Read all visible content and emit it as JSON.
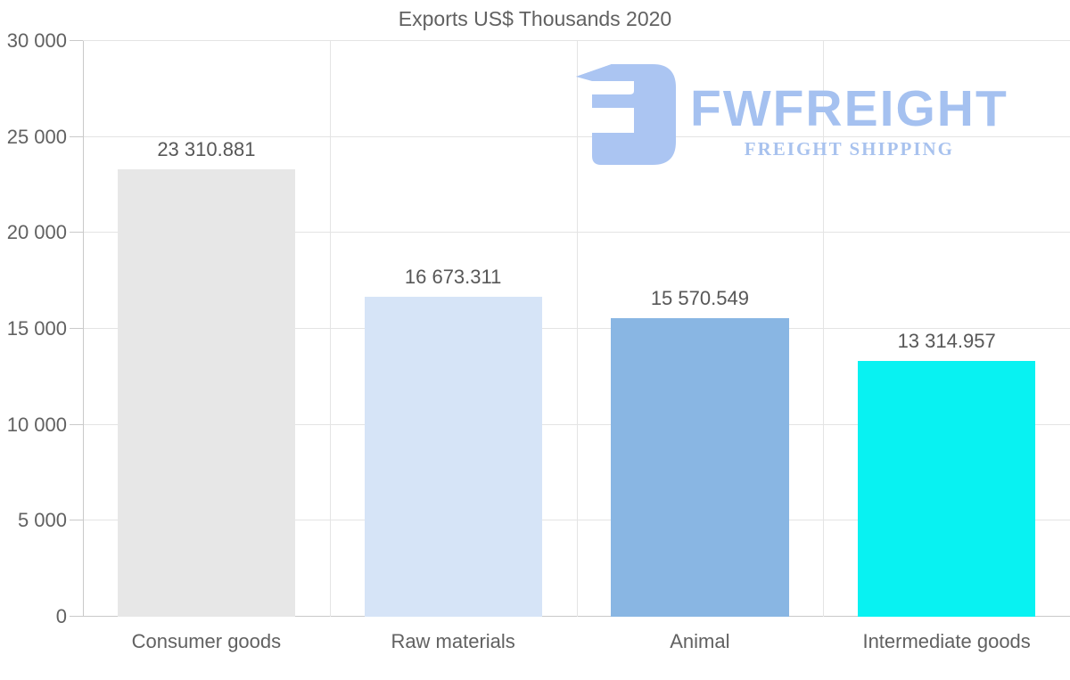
{
  "chart_data": {
    "type": "bar",
    "title": "Exports US$ Thousands 2020",
    "categories": [
      "Consumer goods",
      "Raw materials",
      "Animal",
      "Intermediate goods"
    ],
    "values": [
      23310.881,
      16673.311,
      15570.549,
      13314.957
    ],
    "value_labels": [
      "23 310.881",
      "16 673.311",
      "15 570.549",
      "13 314.957"
    ],
    "bar_colors": [
      "#e7e7e7",
      "#d6e4f7",
      "#89b6e3",
      "#08f2f2"
    ],
    "xlabel": "",
    "ylabel": "",
    "ylim": [
      0,
      30000
    ],
    "yticks": [
      0,
      5000,
      10000,
      15000,
      20000,
      25000,
      30000
    ],
    "ytick_labels": [
      "0",
      "5 000",
      "10 000",
      "15 000",
      "20 000",
      "25 000",
      "30 000"
    ],
    "grid": "horizontal gridlines at every y tick plus vertical category separators",
    "legend": "none",
    "background": "#ffffff"
  },
  "watermark": {
    "brand": "FWFREIGHT",
    "tagline": "FREIGHT SHIPPING",
    "brand_color": "#a5c1f0",
    "mark_color": "#abc5f2"
  },
  "colors": {
    "title_text": "#616161",
    "axis_text": "#616161",
    "value_text": "#575757",
    "gridline": "#e4e4e4",
    "axis_line": "#c9c9c9"
  }
}
